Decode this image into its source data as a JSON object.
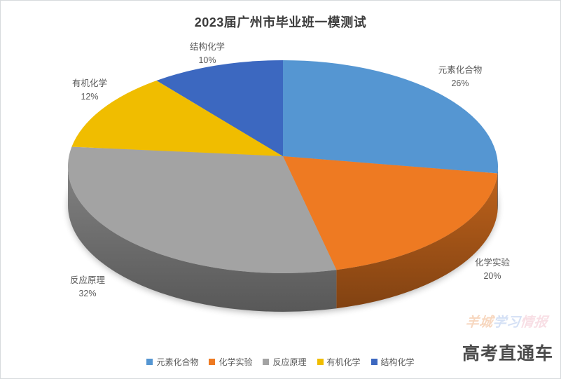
{
  "header": {
    "title": "2023届广州市毕业班一模测试"
  },
  "chart_data": {
    "type": "pie",
    "effect": "3d",
    "title": "2023届广州市毕业班一模测试",
    "categories": [
      "元素化合物",
      "化学实验",
      "反应原理",
      "有机化学",
      "结构化学"
    ],
    "values": [
      26,
      20,
      32,
      12,
      10
    ],
    "unit": "%",
    "colors": [
      "#5596D2",
      "#EE7A22",
      "#A3A3A3",
      "#F0BD00",
      "#3C68C0"
    ],
    "start_angle_deg": 0,
    "direction": "clockwise",
    "legend_position": "bottom",
    "data_labels": "category name and percent, outside slices"
  },
  "watermark": {
    "logo_segments": [
      {
        "text": "羊城",
        "color": "#e9873f"
      },
      {
        "text": "学习",
        "color": "#7fa4e2"
      },
      {
        "text": "情报",
        "color": "#ec9fb2"
      }
    ],
    "caption": "高考直通车"
  }
}
